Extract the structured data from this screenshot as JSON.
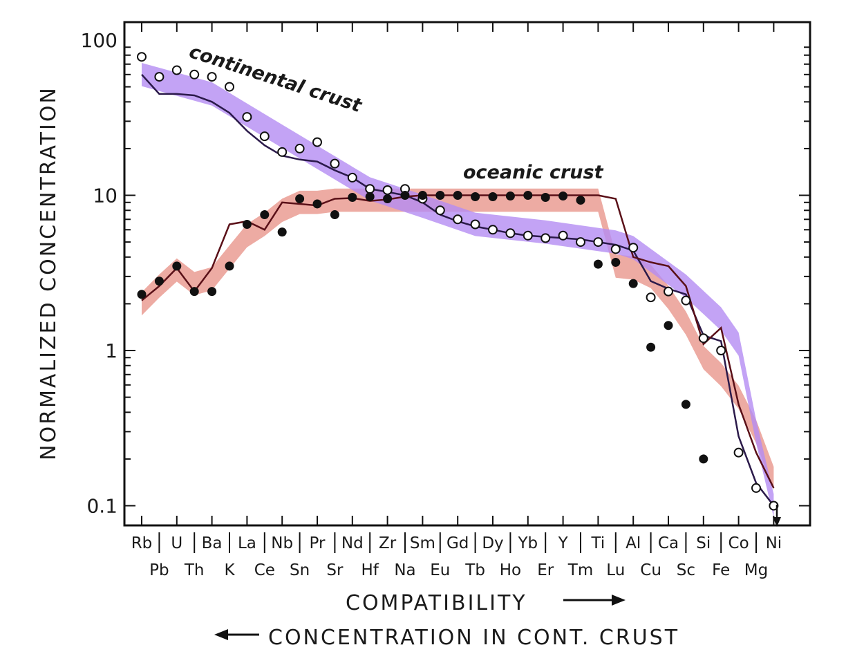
{
  "chart_data": {
    "type": "line",
    "yscale": "log",
    "ylim": [
      0.08,
      120
    ],
    "yticks": [
      {
        "value": 100,
        "label": "100"
      },
      {
        "value": 10,
        "label": "10"
      },
      {
        "value": 1,
        "label": "1"
      },
      {
        "value": 0.1,
        "label": "0.1"
      }
    ],
    "ylabel": "NORMALIZED CONCENTRATION",
    "xlabel": "COMPATIBILITY",
    "xlabel2": "CONCENTRATION IN CONT. CRUST",
    "x_upper_labels": [
      "Rb",
      "U",
      "Ba",
      "La",
      "Nb",
      "Pr",
      "Nd",
      "Zr",
      "Sm",
      "Gd",
      "Dy",
      "Yb",
      "Y",
      "Ti",
      "Al",
      "Ca",
      "Si",
      "Co",
      "Ni"
    ],
    "x_lower_labels": [
      "Pb",
      "Th",
      "K",
      "Ce",
      "Sn",
      "Sr",
      "Hf",
      "Na",
      "Eu",
      "Tb",
      "Ho",
      "Er",
      "Tm",
      "Lu",
      "Cu",
      "Sc",
      "Fe",
      "Mg"
    ],
    "series": [
      {
        "name": "continental crust",
        "color": "#9966ee",
        "band_color": "#b48cf2",
        "marker": "open-circle",
        "x": [
          1,
          2,
          3,
          4,
          5,
          6,
          7,
          8,
          9,
          10,
          11,
          12,
          13,
          14,
          15,
          16,
          17,
          18,
          19,
          20,
          21,
          22,
          23,
          24,
          25,
          26,
          27,
          28,
          29,
          30,
          31,
          32,
          33,
          34,
          35,
          36,
          37
        ],
        "line": [
          60,
          45,
          45,
          44,
          40,
          34,
          26,
          21,
          18,
          17,
          16.5,
          14.5,
          13,
          11,
          10.5,
          10,
          9,
          7.5,
          6.8,
          6.3,
          6,
          5.7,
          5.5,
          5.4,
          5.3,
          5.2,
          5,
          4.8,
          4.4,
          2.8,
          2.5,
          2.3,
          1.25,
          1.15,
          0.28,
          0.14,
          0.1
        ],
        "scatter": [
          78,
          58,
          64,
          60,
          58,
          50,
          32,
          24,
          19,
          20,
          22,
          16,
          13,
          11,
          10.8,
          11,
          9.5,
          8,
          7,
          6.5,
          6,
          5.7,
          5.5,
          5.3,
          5.5,
          5,
          5,
          4.5,
          4.6,
          2.2,
          2.4,
          2.1,
          1.2,
          1.0,
          0.22,
          0.13,
          0.1
        ],
        "band_x": [
          1,
          5,
          9,
          14,
          17,
          20,
          24,
          28,
          29,
          32,
          34,
          35,
          36,
          37
        ],
        "band_mid": [
          60,
          45,
          24,
          11,
          8.5,
          6.5,
          5.8,
          5,
          4.6,
          2.6,
          1.6,
          1.1,
          0.3,
          0.1
        ]
      },
      {
        "name": "oceanic crust",
        "color": "#5a1018",
        "band_color": "#e9968c",
        "marker": "filled-circle",
        "x": [
          1,
          2,
          3,
          4,
          5,
          6,
          7,
          8,
          9,
          10,
          11,
          12,
          13,
          14,
          15,
          16,
          17,
          18,
          19,
          20,
          21,
          22,
          23,
          24,
          25,
          26,
          27,
          28,
          29,
          30,
          31,
          32,
          33,
          34,
          35,
          36,
          37
        ],
        "line": [
          2.1,
          2.6,
          3.4,
          2.4,
          3.4,
          6.5,
          6.8,
          6,
          9,
          8.8,
          8.6,
          9.5,
          9.6,
          9.2,
          9.4,
          9.8,
          10,
          10,
          10,
          10,
          10,
          10,
          10,
          10,
          10,
          10,
          10,
          9.5,
          4,
          3.7,
          3.5,
          2.6,
          1.1,
          1.4,
          0.45,
          0.22,
          0.13
        ],
        "scatter": [
          2.3,
          2.8,
          3.5,
          2.4,
          2.4,
          3.5,
          6.5,
          7.5,
          5.8,
          9.5,
          8.8,
          7.5,
          9.7,
          9.8,
          9.5,
          10,
          10,
          10,
          10,
          9.8,
          9.8,
          9.9,
          10,
          9.7,
          9.9,
          9.3,
          3.6,
          3.7,
          2.7,
          1.05,
          1.45,
          0.45,
          0.2
        ],
        "scatter_x": [
          1,
          2,
          3,
          4,
          5,
          6,
          7,
          8,
          9,
          10,
          11,
          12,
          13,
          14,
          15,
          16,
          17,
          18,
          19,
          20,
          21,
          22,
          23,
          24,
          25,
          26,
          27,
          28,
          29,
          30,
          31,
          32,
          33
        ],
        "band_x": [
          1,
          2,
          3,
          4,
          5,
          6,
          7,
          8,
          9,
          10,
          11,
          12,
          13,
          14,
          15,
          16,
          17,
          18,
          19,
          20,
          21,
          22,
          23,
          24,
          25,
          26,
          27,
          28,
          29,
          30,
          31,
          32,
          33,
          34,
          35,
          36,
          37
        ],
        "band_mid": [
          2.0,
          2.6,
          3.3,
          2.7,
          2.9,
          4.0,
          5.5,
          6.5,
          8.0,
          9.0,
          9.0,
          9.3,
          9.3,
          9.3,
          9.3,
          9.3,
          9.3,
          9.3,
          9.3,
          9.3,
          9.3,
          9.3,
          9.3,
          9.3,
          9.3,
          9.3,
          9.3,
          3.5,
          3.4,
          3.0,
          2.2,
          1.5,
          0.9,
          0.7,
          0.5,
          0.3,
          0.15
        ]
      }
    ],
    "labels": {
      "continental": "continental crust",
      "oceanic": "oceanic crust"
    }
  }
}
